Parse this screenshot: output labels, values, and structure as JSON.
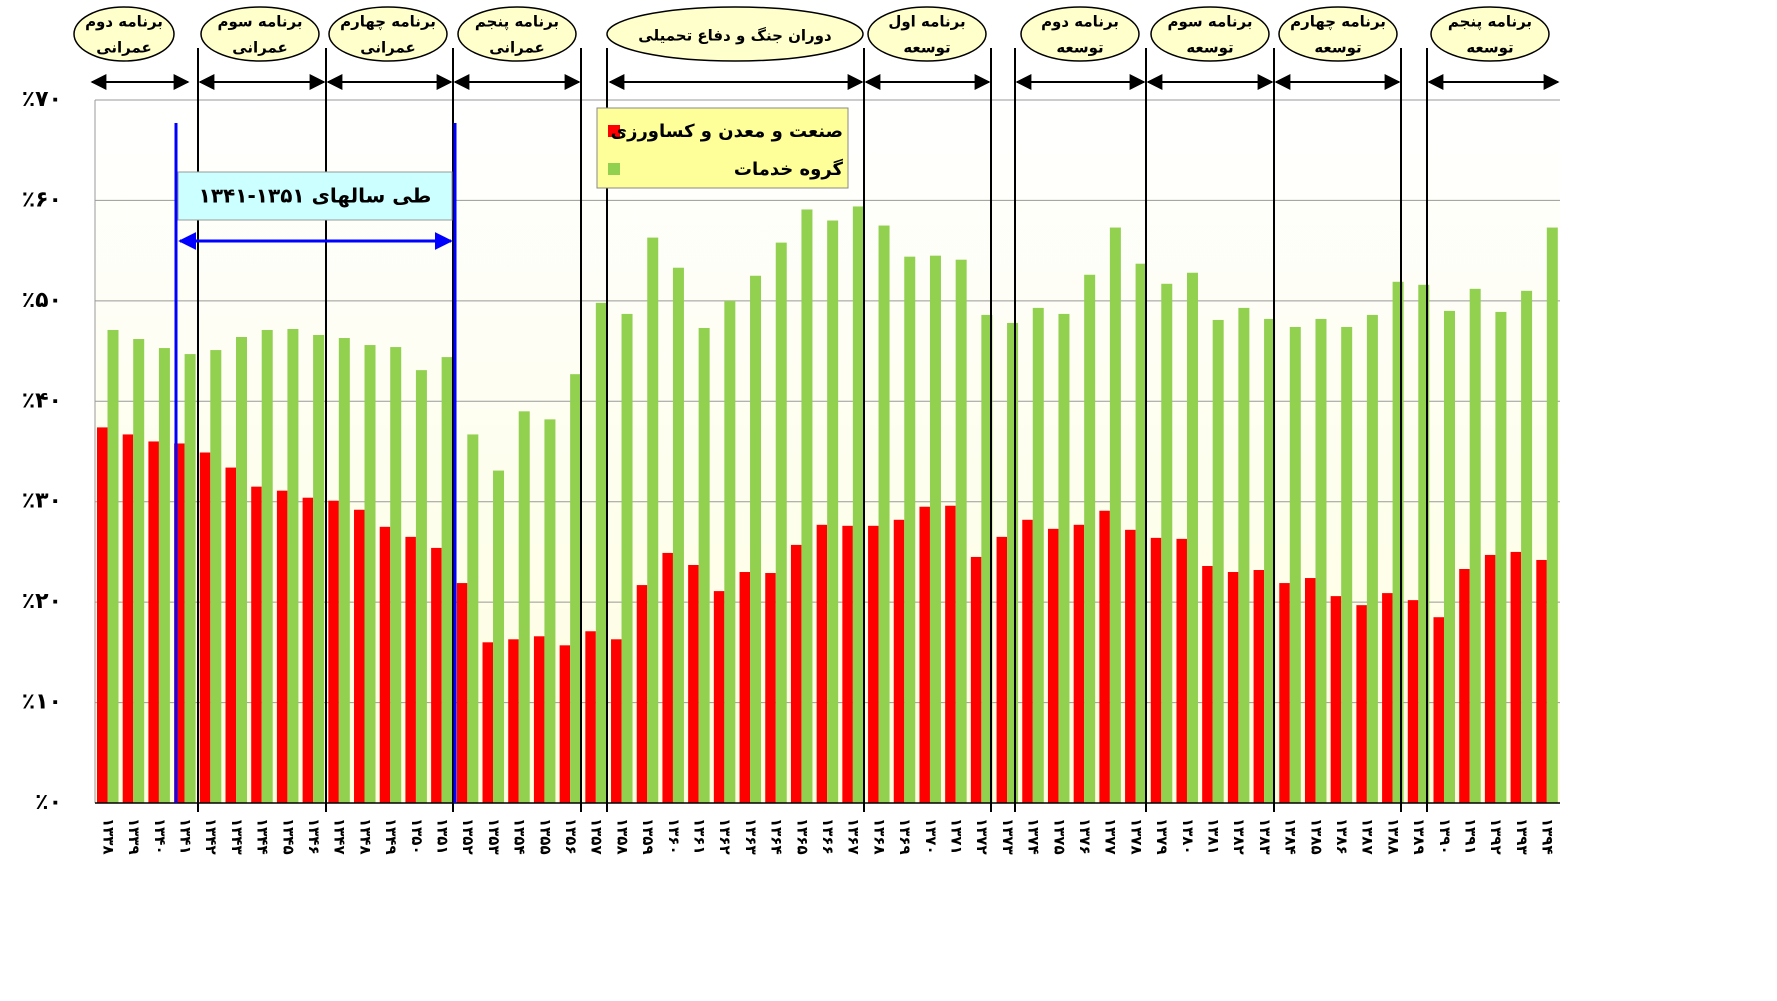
{
  "chart_data": {
    "type": "bar",
    "categories": [
      "۱۳۳۸",
      "۱۳۳۹",
      "۱۳۴۰",
      "۱۳۴۱",
      "۱۳۴۲",
      "۱۳۴۳",
      "۱۳۴۴",
      "۱۳۴۵",
      "۱۳۴۶",
      "۱۳۴۷",
      "۱۳۴۸",
      "۱۳۴۹",
      "۱۳۵۰",
      "۱۳۵۱",
      "۱۳۵۲",
      "۱۳۵۳",
      "۱۳۵۴",
      "۱۳۵۵",
      "۱۳۵۶",
      "۱۳۵۷",
      "۱۳۵۸",
      "۱۳۵۹",
      "۱۳۶۰",
      "۱۳۶۱",
      "۱۳۶۲",
      "۱۳۶۳",
      "۱۳۶۴",
      "۱۳۶۵",
      "۱۳۶۶",
      "۱۳۶۷",
      "۱۳۶۸",
      "۱۳۶۹",
      "۱۳۷۰",
      "۱۳۷۱",
      "۱۳۷۲",
      "۱۳۷۳",
      "۱۳۷۴",
      "۱۳۷۵",
      "۱۳۷۶",
      "۱۳۷۷",
      "۱۳۷۸",
      "۱۳۷۹",
      "۱۳۸۰",
      "۱۳۸۱",
      "۱۳۸۲",
      "۱۳۸۳",
      "۱۳۸۴",
      "۱۳۸۵",
      "۱۳۸۶",
      "۱۳۸۷",
      "۱۳۸۸",
      "۱۳۸۹",
      "۱۳۹۰",
      "۱۳۹۱",
      "۱۳۹۲",
      "۱۳۹۳",
      "۱۳۹۴"
    ],
    "series": [
      {
        "name": "صنعت و معدن و کساورزی",
        "color": "#ff0000",
        "values": [
          37.4,
          36.7,
          36.0,
          35.8,
          34.9,
          33.4,
          31.5,
          31.1,
          30.4,
          30.1,
          29.2,
          27.5,
          26.5,
          25.4,
          21.9,
          16.0,
          16.3,
          16.6,
          15.7,
          17.1,
          16.3,
          21.7,
          24.9,
          23.7,
          21.1,
          23.0,
          22.9,
          25.7,
          27.7,
          27.6,
          27.6,
          28.2,
          29.5,
          29.6,
          24.5,
          26.5,
          28.2,
          27.3,
          27.7,
          29.1,
          27.2,
          26.4,
          26.3,
          23.6,
          23.0,
          23.2,
          21.9,
          22.4,
          20.6,
          19.7,
          20.9,
          20.2,
          18.5,
          23.3,
          24.7,
          25.0,
          24.2
        ]
      },
      {
        "name": "گروه خدمات",
        "color": "#92d050",
        "values": [
          47.1,
          46.2,
          45.3,
          44.7,
          45.1,
          46.4,
          47.1,
          47.2,
          46.6,
          46.3,
          45.6,
          45.4,
          43.1,
          44.4,
          36.7,
          33.1,
          39.0,
          38.2,
          42.7,
          49.8,
          48.7,
          56.3,
          53.3,
          47.3,
          50.0,
          52.5,
          55.8,
          59.1,
          58.0,
          59.4,
          57.5,
          54.4,
          54.5,
          54.1,
          48.6,
          47.8,
          49.3,
          48.7,
          52.6,
          57.3,
          53.7,
          51.7,
          52.8,
          48.1,
          49.3,
          48.2,
          47.4,
          48.2,
          47.4,
          48.6,
          51.9,
          51.6,
          49.0,
          51.2,
          48.9,
          51.0,
          57.3
        ]
      }
    ],
    "ylim": [
      0,
      70
    ],
    "yticks": [
      {
        "value": 0,
        "label": "٪۰"
      },
      {
        "value": 10,
        "label": "٪۱۰"
      },
      {
        "value": 20,
        "label": "٪۲۰"
      },
      {
        "value": 30,
        "label": "٪۳۰"
      },
      {
        "value": 40,
        "label": "٪۴۰"
      },
      {
        "value": 50,
        "label": "٪۵۰"
      },
      {
        "value": 60,
        "label": "٪۶۰"
      },
      {
        "value": 70,
        "label": "٪۷۰"
      }
    ],
    "grid": true,
    "legend": "top-center",
    "periods": [
      [
        "برنامه دوم",
        "عمرانی"
      ],
      [
        "برنامه سوم",
        "عمرانی"
      ],
      [
        "برنامه چهارم",
        "عمرانی"
      ],
      [
        "برنامه پنجم",
        "عمرانی"
      ],
      [
        "دوران جنگ و دفاع تحمیلی"
      ],
      [
        "برنامه اول",
        "توسعه"
      ],
      [
        "برنامه دوم",
        "توسعه"
      ],
      [
        "برنامه سوم",
        "توسعه"
      ],
      [
        "برنامه چهارم",
        "توسعه"
      ],
      [
        "برنامه پنجم",
        "توسعه"
      ]
    ],
    "annotation": "طی سالهای ۱۳۵۱-۱۳۴۱"
  }
}
